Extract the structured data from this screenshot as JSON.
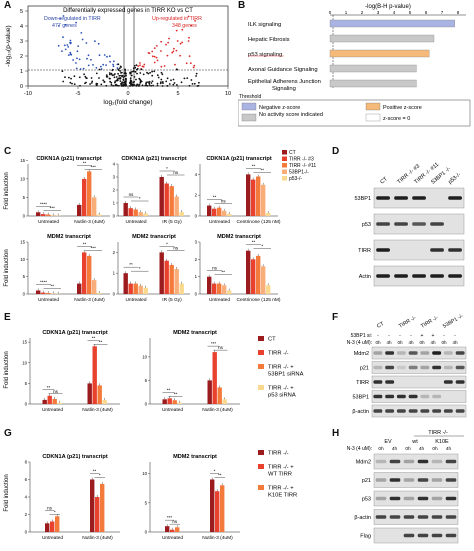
{
  "panelA": {
    "letter": "A",
    "title": "Differentially expressed genes in TIRR KO vs CT",
    "down_label": "Down-regulated in TIRR",
    "down_count": "477 genes",
    "up_label": "Up-regulated in TIRR",
    "up_count": "348 genes",
    "xlabel": "log₂(fold change)",
    "ylabel": "-log₁₀(p-value)",
    "xticks": [
      "-10",
      "-5",
      "0",
      "5",
      "10"
    ],
    "yticks": [
      "0",
      "1",
      "2",
      "3",
      "4",
      "5"
    ]
  },
  "panelB": {
    "letter": "B",
    "axis_title": "-log(B-H p-value)",
    "xticks": [
      "0",
      "1",
      "2",
      "3",
      "4",
      "5",
      "6",
      "7",
      "8"
    ],
    "threshold": "Threshold",
    "legend": [
      "Negative z-score",
      "Positive z-score",
      "No activity score indicated",
      "z-score = 0"
    ],
    "colors": {
      "negative": "#aab4e2",
      "positive": "#f5b97a",
      "none": "#c8c8c8",
      "zero": "#ffffff"
    }
  },
  "panelC": {
    "letter": "C",
    "ylabel": "Fold induction",
    "titles": [
      "CDKN1A (p21) transcript",
      "CDKN1A (p21) transcript",
      "CDKN1A (p21) transcript",
      "MDM2 transcript",
      "MDM2 transcript",
      "MDM2 transcript"
    ],
    "conds": [
      "Untreated",
      "Nutlin-3 (4uM)",
      "Untreated",
      "IR (5 Gy)",
      "Untreated",
      "Centrinone (125 nM)",
      "Untreated",
      "Nutlin-3 (4uM)",
      "Untreated",
      "IR (5 Gy)",
      "Untreated",
      "Centrinone (125 nM)"
    ],
    "legend": [
      "CT",
      "TIRR -/- #3",
      "TIRR -/- #11",
      "53BP1-/-",
      "p53-/-"
    ],
    "colors": [
      "#9b1b1e",
      "#e8412d",
      "#f47a3c",
      "#f9ae7a",
      "#fad98f"
    ],
    "stars": [
      "****",
      "***",
      "**",
      "***",
      "ns",
      "*",
      "*",
      "ns",
      "**",
      "ns",
      "**",
      "**",
      "****",
      "**",
      "**",
      "***",
      "**",
      "*",
      "*",
      "ns",
      "ns",
      "**",
      "**",
      "*",
      "**"
    ]
  },
  "panelD": {
    "letter": "D",
    "lanes": [
      "CT",
      "TIRR -/- #3",
      "TIRR -/- #11",
      "53BP1 -/-",
      "p53-/-"
    ],
    "rows": [
      "53BP1",
      "p53",
      "TIRR",
      "Actin"
    ]
  },
  "panelE": {
    "letter": "E",
    "ylabel": "Fold induction",
    "titles": [
      "CDKN1A (p21) transcript",
      "MDM2 transcript"
    ],
    "conds": [
      "Untreated",
      "Nutlin-3 (4uM)",
      "Untreated",
      "Nutlin-3 (4uM)"
    ],
    "legend": [
      "CT",
      "TIRR -/-",
      "TIRR -/- + 53BP1 siRNA",
      "TIRR -/- + p53 siRNA"
    ],
    "colors": [
      "#9b1b1e",
      "#e8412d",
      "#f47a3c",
      "#fad98f"
    ],
    "stars": [
      "**",
      "ns",
      "**",
      "**",
      "**",
      "**",
      "***",
      "ns",
      "**",
      "**",
      "ns",
      "**"
    ]
  },
  "panelF": {
    "letter": "F",
    "top": [
      "CT",
      "TIRR -/-",
      "TIRR -/-",
      "53BP1 -/-"
    ],
    "si_label": "53BP1 si:",
    "si": [
      "-",
      "-",
      "-",
      "-",
      "+",
      "+",
      "-",
      "-"
    ],
    "n3_label": "N-3 (4 uM):",
    "n3": [
      "0h",
      "4h",
      "0h",
      "4h",
      "0h",
      "4h",
      "0h",
      "4h"
    ],
    "rows": [
      "Mdm2",
      "p21",
      "TIRR",
      "53BP1",
      "β-actin"
    ]
  },
  "panelG": {
    "letter": "G",
    "ylabel": "Fold induction",
    "titles": [
      "CDKN1A (p21) transcript",
      "MDM2 transcript"
    ],
    "conds": [
      "Untreated",
      "Nutlin-3 (4uM)",
      "Untreated",
      "Nutlin-3 (4uM)"
    ],
    "legend": [
      "TIRR -/-",
      "TIRR -/- + WT TIRR",
      "TIRR -/- + K10E TIRR"
    ],
    "colors": [
      "#9b1b1e",
      "#e8412d",
      "#f47a3c"
    ],
    "stars": [
      "ns",
      "*",
      "**",
      "*",
      "***",
      "ns",
      "*",
      "**"
    ]
  },
  "panelH": {
    "letter": "H",
    "header": "TIRR -/-",
    "groups": [
      "EV",
      "wt",
      "K10E"
    ],
    "n3_label": "N-3 (4 uM):",
    "n3": [
      "0h",
      "4h",
      "0h",
      "4h",
      "0h",
      "4h"
    ],
    "rows": [
      "Mdm2",
      "p21",
      "p53",
      "β-actin",
      "Flag"
    ]
  }
}
